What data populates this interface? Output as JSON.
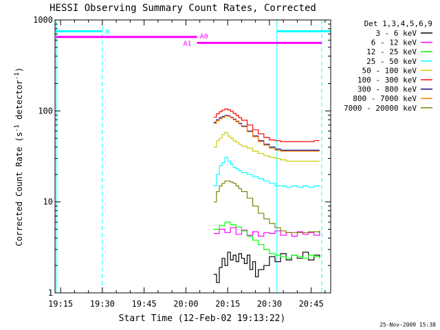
{
  "chart_data": {
    "type": "line",
    "title": "HESSI Observing Summary Count Rates, Corrected",
    "xlabel": "Start Time (12-Feb-02 19:13:22)",
    "ylabel": "Corrected Count Rate (s",
    "ylabel_sup": "-1",
    "ylabel_tail": " detector",
    "ylabel_sup2": "-1",
    "ylabel_close": ")",
    "yscale": "log",
    "ylim": [
      1,
      1000
    ],
    "xlim_minutes": [
      1153,
      1252
    ],
    "x_ticks": [
      {
        "m": 1155,
        "label": "19:15"
      },
      {
        "m": 1170,
        "label": "19:30"
      },
      {
        "m": 1185,
        "label": "19:45"
      },
      {
        "m": 1200,
        "label": "20:00"
      },
      {
        "m": 1215,
        "label": "20:15"
      },
      {
        "m": 1230,
        "label": "20:30"
      },
      {
        "m": 1245,
        "label": "20:45"
      }
    ],
    "y_ticks": [
      {
        "v": 1,
        "label": "1"
      },
      {
        "v": 10,
        "label": "10"
      },
      {
        "v": 100,
        "label": "100"
      },
      {
        "v": 1000,
        "label": "1000"
      }
    ],
    "legend_title": "Det 1,3,4,5,6,9",
    "series": [
      {
        "name": "3 - 6 keV",
        "color": "#000000",
        "points": [
          [
            1210.0,
            1.6
          ],
          [
            1211.0,
            1.3
          ],
          [
            1212.0,
            1.9
          ],
          [
            1213.0,
            2.4
          ],
          [
            1214.0,
            2.0
          ],
          [
            1215.0,
            2.8
          ],
          [
            1216.0,
            2.3
          ],
          [
            1217.0,
            2.6
          ],
          [
            1218.0,
            2.2
          ],
          [
            1219.0,
            2.7
          ],
          [
            1220.0,
            2.4
          ],
          [
            1221.0,
            2.1
          ],
          [
            1222.0,
            2.6
          ],
          [
            1223.0,
            1.8
          ],
          [
            1224.0,
            2.2
          ],
          [
            1225.0,
            1.5
          ],
          [
            1226.0,
            1.8
          ],
          [
            1228.0,
            2.0
          ],
          [
            1230.0,
            2.5
          ],
          [
            1232.0,
            2.2
          ],
          [
            1234.0,
            2.7
          ],
          [
            1236.0,
            2.3
          ],
          [
            1238.0,
            2.6
          ],
          [
            1240.0,
            2.4
          ],
          [
            1242.0,
            2.8
          ],
          [
            1244.0,
            2.3
          ],
          [
            1246.0,
            2.6
          ],
          [
            1248.0,
            2.4
          ]
        ]
      },
      {
        "name": "6 - 12 keV",
        "color": "#ff00ff",
        "points": [
          [
            1210.0,
            4.5
          ],
          [
            1212.0,
            5.0
          ],
          [
            1214.0,
            4.6
          ],
          [
            1216.0,
            5.2
          ],
          [
            1218.0,
            4.4
          ],
          [
            1220.0,
            4.9
          ],
          [
            1222.0,
            4.3
          ],
          [
            1224.0,
            4.7
          ],
          [
            1226.0,
            4.2
          ],
          [
            1228.0,
            4.6
          ],
          [
            1230.0,
            4.5
          ],
          [
            1232.0,
            4.8
          ],
          [
            1234.0,
            4.3
          ],
          [
            1236.0,
            4.6
          ],
          [
            1238.0,
            4.2
          ],
          [
            1240.0,
            4.7
          ],
          [
            1242.0,
            4.4
          ],
          [
            1244.0,
            4.6
          ],
          [
            1246.0,
            4.3
          ],
          [
            1248.0,
            4.8
          ]
        ]
      },
      {
        "name": "12 - 25 keV",
        "color": "#00ff00",
        "points": [
          [
            1210.0,
            5.0
          ],
          [
            1212.0,
            5.5
          ],
          [
            1214.0,
            6.0
          ],
          [
            1216.0,
            5.6
          ],
          [
            1218.0,
            5.3
          ],
          [
            1220.0,
            4.8
          ],
          [
            1222.0,
            4.2
          ],
          [
            1224.0,
            3.8
          ],
          [
            1226.0,
            3.4
          ],
          [
            1228.0,
            3.0
          ],
          [
            1230.0,
            2.7
          ],
          [
            1232.0,
            2.6
          ],
          [
            1234.0,
            2.5
          ],
          [
            1236.0,
            2.4
          ],
          [
            1238.0,
            2.6
          ],
          [
            1240.0,
            2.5
          ],
          [
            1242.0,
            2.4
          ],
          [
            1244.0,
            2.6
          ],
          [
            1246.0,
            2.5
          ],
          [
            1248.0,
            2.4
          ]
        ]
      },
      {
        "name": "25 - 50 keV",
        "color": "#00ffff",
        "points": [
          [
            1210.0,
            15
          ],
          [
            1211.0,
            20
          ],
          [
            1212.0,
            25
          ],
          [
            1213.0,
            27
          ],
          [
            1214.0,
            31
          ],
          [
            1215.0,
            28
          ],
          [
            1216.0,
            26
          ],
          [
            1217.0,
            24
          ],
          [
            1218.0,
            23
          ],
          [
            1219.0,
            22
          ],
          [
            1220.0,
            21
          ],
          [
            1222.0,
            20
          ],
          [
            1224.0,
            19
          ],
          [
            1226.0,
            18
          ],
          [
            1228.0,
            17
          ],
          [
            1230.0,
            16
          ],
          [
            1232.0,
            15
          ],
          [
            1234.0,
            15
          ],
          [
            1236.0,
            14.5
          ],
          [
            1238.0,
            15
          ],
          [
            1240.0,
            14.5
          ],
          [
            1242.0,
            15
          ],
          [
            1244.0,
            14.5
          ],
          [
            1246.0,
            15
          ],
          [
            1248.0,
            15
          ]
        ]
      },
      {
        "name": "50 - 100 keV",
        "color": "#cccc00",
        "points": [
          [
            1210.0,
            40
          ],
          [
            1211.0,
            47
          ],
          [
            1212.0,
            50
          ],
          [
            1213.0,
            55
          ],
          [
            1214.0,
            58
          ],
          [
            1215.0,
            53
          ],
          [
            1216.0,
            50
          ],
          [
            1217.0,
            47
          ],
          [
            1218.0,
            45
          ],
          [
            1219.0,
            43
          ],
          [
            1220.0,
            41
          ],
          [
            1222.0,
            39
          ],
          [
            1224.0,
            36
          ],
          [
            1226.0,
            34
          ],
          [
            1228.0,
            32
          ],
          [
            1230.0,
            31
          ],
          [
            1232.0,
            30
          ],
          [
            1234.0,
            29
          ],
          [
            1236.0,
            28
          ],
          [
            1238.0,
            28
          ],
          [
            1240.0,
            28
          ],
          [
            1242.0,
            28
          ],
          [
            1244.0,
            28
          ],
          [
            1246.0,
            28
          ],
          [
            1248.0,
            28
          ]
        ]
      },
      {
        "name": "100 - 300 keV",
        "color": "#ff0000",
        "points": [
          [
            1210.0,
            85
          ],
          [
            1211.0,
            93
          ],
          [
            1212.0,
            98
          ],
          [
            1213.0,
            102
          ],
          [
            1214.0,
            105
          ],
          [
            1215.0,
            103
          ],
          [
            1216.0,
            99
          ],
          [
            1217.0,
            94
          ],
          [
            1218.0,
            89
          ],
          [
            1219.0,
            84
          ],
          [
            1220.0,
            79
          ],
          [
            1222.0,
            70
          ],
          [
            1224.0,
            62
          ],
          [
            1226.0,
            56
          ],
          [
            1228.0,
            51
          ],
          [
            1230.0,
            48
          ],
          [
            1232.0,
            47
          ],
          [
            1234.0,
            46
          ],
          [
            1236.0,
            46
          ],
          [
            1238.0,
            46
          ],
          [
            1240.0,
            46
          ],
          [
            1242.0,
            46
          ],
          [
            1244.0,
            46
          ],
          [
            1246.0,
            47
          ],
          [
            1248.0,
            47
          ]
        ]
      },
      {
        "name": "300 - 800 keV",
        "color": "#000080",
        "points": [
          [
            1210.0,
            75
          ],
          [
            1211.0,
            80
          ],
          [
            1212.0,
            84
          ],
          [
            1213.0,
            87
          ],
          [
            1214.0,
            89
          ],
          [
            1215.0,
            88
          ],
          [
            1216.0,
            85
          ],
          [
            1217.0,
            81
          ],
          [
            1218.0,
            77
          ],
          [
            1219.0,
            73
          ],
          [
            1220.0,
            68
          ],
          [
            1222.0,
            60
          ],
          [
            1224.0,
            53
          ],
          [
            1226.0,
            47
          ],
          [
            1228.0,
            43
          ],
          [
            1230.0,
            40
          ],
          [
            1232.0,
            38
          ],
          [
            1234.0,
            37
          ],
          [
            1236.0,
            37
          ],
          [
            1238.0,
            37
          ],
          [
            1240.0,
            37
          ],
          [
            1242.0,
            37
          ],
          [
            1244.0,
            37
          ],
          [
            1246.0,
            37
          ],
          [
            1248.0,
            37
          ]
        ]
      },
      {
        "name": "800 - 7000 keV",
        "color": "#ff8000",
        "points": [
          [
            1210.0,
            73
          ],
          [
            1211.0,
            78
          ],
          [
            1212.0,
            82
          ],
          [
            1213.0,
            85
          ],
          [
            1214.0,
            88
          ],
          [
            1215.0,
            87
          ],
          [
            1216.0,
            84
          ],
          [
            1217.0,
            80
          ],
          [
            1218.0,
            76
          ],
          [
            1219.0,
            72
          ],
          [
            1220.0,
            67
          ],
          [
            1222.0,
            59
          ],
          [
            1224.0,
            52
          ],
          [
            1226.0,
            46
          ],
          [
            1228.0,
            42
          ],
          [
            1230.0,
            39
          ],
          [
            1232.0,
            37
          ],
          [
            1234.0,
            36
          ],
          [
            1236.0,
            36
          ],
          [
            1238.0,
            36
          ],
          [
            1240.0,
            36
          ],
          [
            1242.0,
            36
          ],
          [
            1244.0,
            36
          ],
          [
            1246.0,
            36
          ],
          [
            1248.0,
            36
          ]
        ]
      },
      {
        "name": "7000 - 20000 keV",
        "color": "#808000",
        "points": [
          [
            1210.0,
            10
          ],
          [
            1211.0,
            13
          ],
          [
            1212.0,
            15
          ],
          [
            1213.0,
            16
          ],
          [
            1214.0,
            17
          ],
          [
            1215.0,
            17
          ],
          [
            1216.0,
            16.5
          ],
          [
            1217.0,
            16
          ],
          [
            1218.0,
            15
          ],
          [
            1219.0,
            14
          ],
          [
            1220.0,
            13
          ],
          [
            1222.0,
            11
          ],
          [
            1224.0,
            9
          ],
          [
            1226.0,
            7.5
          ],
          [
            1228.0,
            6.5
          ],
          [
            1230.0,
            5.8
          ],
          [
            1232.0,
            5.2
          ],
          [
            1234.0,
            4.8
          ],
          [
            1236.0,
            4.6
          ],
          [
            1238.0,
            4.6
          ],
          [
            1240.0,
            4.6
          ],
          [
            1242.0,
            4.6
          ],
          [
            1244.0,
            4.7
          ],
          [
            1246.0,
            4.7
          ],
          [
            1248.0,
            4.8
          ]
        ]
      }
    ],
    "bars": [
      {
        "label": "N",
        "color": "#00ffff",
        "y": 750,
        "segments": [
          [
            1153.3,
            1170.0
          ],
          [
            1232.7,
            1252.0
          ]
        ]
      },
      {
        "label": "A0",
        "color": "#ff00ff",
        "y": 650,
        "segments": [
          [
            1153.3,
            1204.0
          ]
        ]
      },
      {
        "label": "A1",
        "color": "#ff00ff",
        "y": 560,
        "segments": [
          [
            1204.0,
            1248.7
          ]
        ]
      }
    ],
    "vlines": [
      {
        "m": 1153.4,
        "color": "#00ffff",
        "style": "solid"
      },
      {
        "m": 1170.0,
        "color": "#00ffff",
        "style": "dashed"
      },
      {
        "m": 1232.7,
        "color": "#00ffff",
        "style": "solid"
      },
      {
        "m": 1248.8,
        "color": "#00ffff",
        "style": "dashed"
      }
    ],
    "timestamp": "25-Nov-2009 15:38"
  }
}
